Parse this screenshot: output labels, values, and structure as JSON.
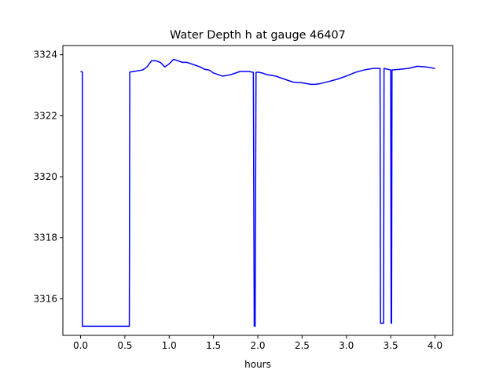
{
  "chart_data": {
    "type": "line",
    "title": "Water Depth h at gauge 46407",
    "xlabel": "hours",
    "ylabel": "",
    "xlim": [
      -0.2,
      4.2
    ],
    "ylim": [
      3314.8,
      3324.3
    ],
    "grid": false,
    "legend": "none",
    "line_color": "#0000ff",
    "x_ticks": [
      0.0,
      0.5,
      1.0,
      1.5,
      2.0,
      2.5,
      3.0,
      3.5,
      4.0
    ],
    "x_tick_labels": [
      "0.0",
      "0.5",
      "1.0",
      "1.5",
      "2.0",
      "2.5",
      "3.0",
      "3.5",
      "4.0"
    ],
    "y_ticks": [
      3316,
      3318,
      3320,
      3322,
      3324
    ],
    "y_tick_labels": [
      "3316",
      "3318",
      "3320",
      "3322",
      "3324"
    ],
    "series": [
      {
        "x": [
          0.0,
          0.02,
          0.02,
          0.3,
          0.55,
          0.555,
          0.6,
          0.7,
          0.75,
          0.8,
          0.85,
          0.9,
          0.95,
          1.0,
          1.05,
          1.1,
          1.15,
          1.2,
          1.25,
          1.3,
          1.35,
          1.4,
          1.45,
          1.5,
          1.55,
          1.6,
          1.65,
          1.7,
          1.8,
          1.9,
          1.95,
          1.96,
          1.97,
          1.98,
          1.99,
          2.0,
          2.05,
          2.1,
          2.2,
          2.3,
          2.4,
          2.5,
          2.6,
          2.65,
          2.7,
          2.8,
          2.9,
          3.0,
          3.1,
          3.2,
          3.3,
          3.38,
          3.385,
          3.42,
          3.425,
          3.5,
          3.505,
          3.51,
          3.515,
          3.6,
          3.7,
          3.8,
          3.9,
          4.0
        ],
        "y": [
          3323.45,
          3323.43,
          3315.1,
          3315.1,
          3315.1,
          3323.43,
          3323.45,
          3323.5,
          3323.6,
          3323.8,
          3323.8,
          3323.75,
          3323.6,
          3323.7,
          3323.85,
          3323.8,
          3323.75,
          3323.75,
          3323.7,
          3323.65,
          3323.6,
          3323.52,
          3323.5,
          3323.4,
          3323.35,
          3323.3,
          3323.32,
          3323.35,
          3323.45,
          3323.45,
          3323.42,
          3315.1,
          3315.1,
          3323.42,
          3323.42,
          3323.43,
          3323.4,
          3323.35,
          3323.3,
          3323.2,
          3323.1,
          3323.08,
          3323.03,
          3323.03,
          3323.05,
          3323.12,
          3323.2,
          3323.3,
          3323.42,
          3323.5,
          3323.55,
          3323.55,
          3315.2,
          3315.2,
          3323.55,
          3323.5,
          3315.2,
          3315.2,
          3323.5,
          3323.52,
          3323.55,
          3323.62,
          3323.6,
          3323.55
        ]
      }
    ]
  }
}
